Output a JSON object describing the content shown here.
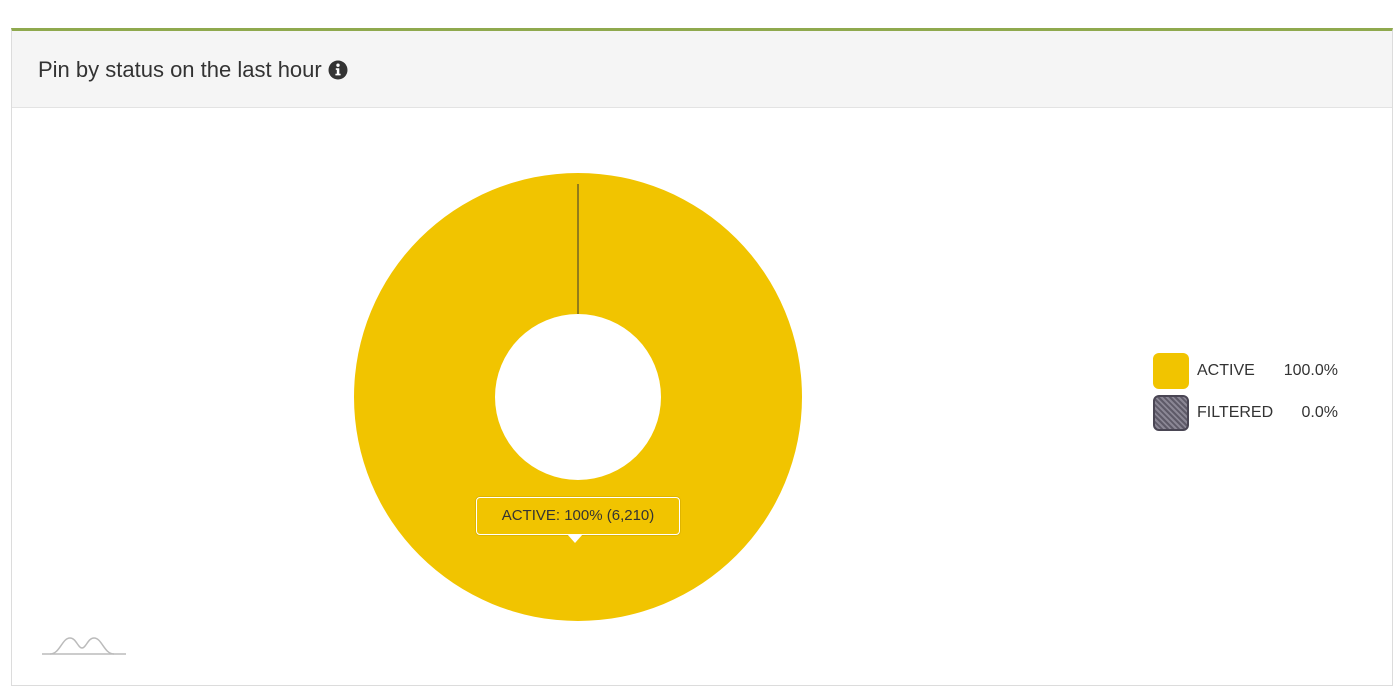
{
  "panel": {
    "title": "Pin by status on the last hour",
    "info_icon": "info-circle-icon",
    "border_accent": "#8fa94e"
  },
  "chart_data": {
    "type": "pie",
    "variant": "donut",
    "title": "Pin by status on the last hour",
    "series": [
      {
        "name": "ACTIVE",
        "value": 6210,
        "percent": 100.0,
        "color": "#f1c400"
      },
      {
        "name": "FILTERED",
        "value": 0,
        "percent": 0.0,
        "color": "#6e6a78"
      }
    ],
    "tooltip": {
      "series": "ACTIVE",
      "text": "ACTIVE: 100% (6,210)"
    },
    "legend": {
      "position": "right",
      "items": [
        {
          "label": "ACTIVE",
          "value": "100.0%",
          "color": "#f1c400"
        },
        {
          "label": "FILTERED",
          "value": "0.0%",
          "color": "#6e6a78"
        }
      ]
    }
  },
  "footer": {
    "logo_icon": "sparkline-logo-icon"
  }
}
